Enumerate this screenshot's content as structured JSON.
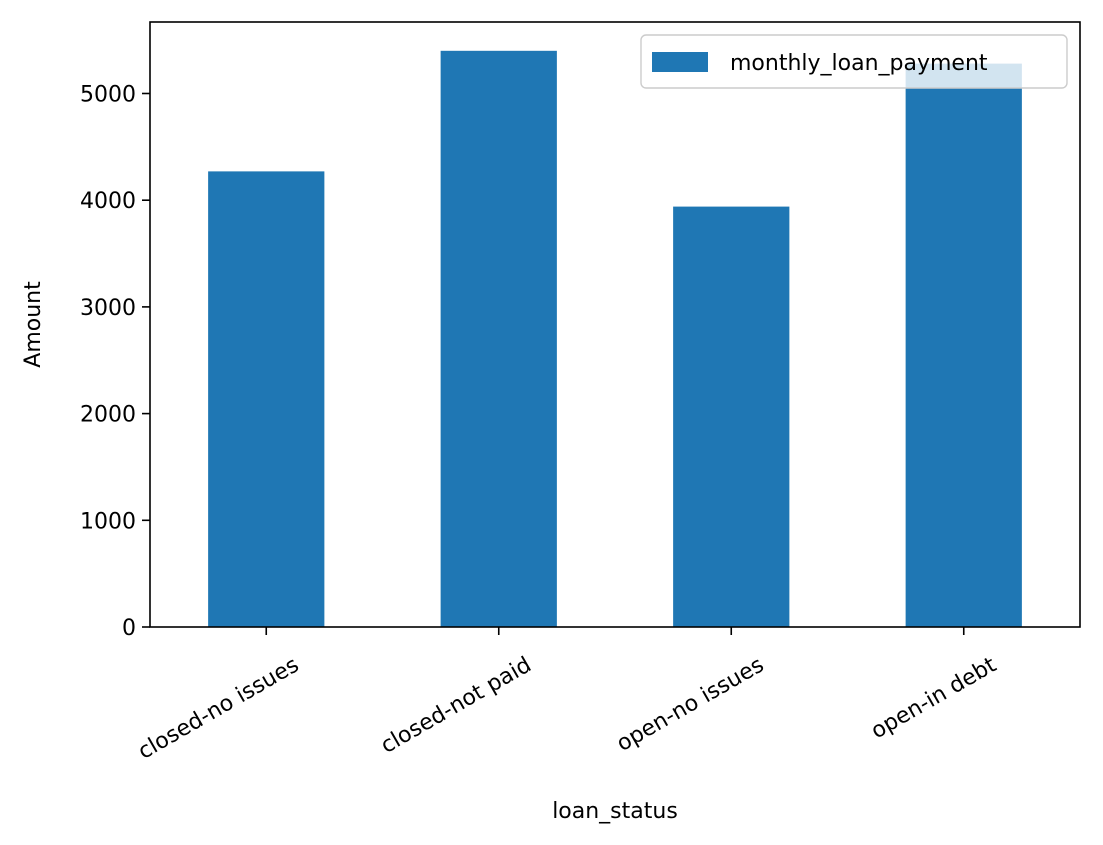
{
  "chart_data": {
    "type": "bar",
    "categories": [
      "closed-no issues",
      "closed-not paid",
      "open-no issues",
      "open-in debt"
    ],
    "series": [
      {
        "name": "monthly_loan_payment",
        "values": [
          4270,
          5400,
          3940,
          5280
        ],
        "color": "#1f77b4"
      }
    ],
    "xlabel": "loan_status",
    "ylabel": "Amount",
    "ylim": [
      0,
      5670
    ],
    "yticks": [
      0,
      1000,
      2000,
      3000,
      4000,
      5000
    ],
    "grid": false,
    "legend": "top-right"
  }
}
